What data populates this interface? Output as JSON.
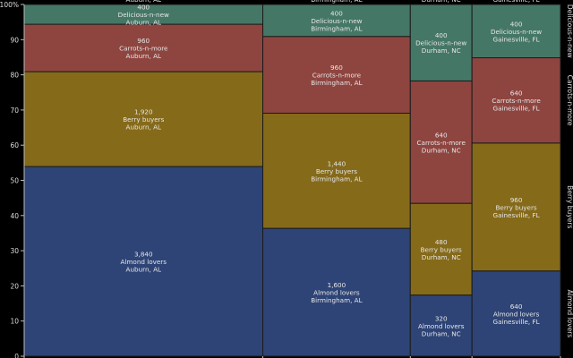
{
  "chart_data": {
    "type": "mosaic",
    "title": "",
    "xlabel": "",
    "ylabel": "",
    "ylim": [
      0,
      100
    ],
    "y_ticks": [
      "0",
      "10",
      "20",
      "30",
      "40",
      "50",
      "60",
      "70",
      "80",
      "90",
      "100%"
    ],
    "grid": false,
    "legend": "right-side rotated labels",
    "categories": [
      "Auburn, AL",
      "Birmingham, AL",
      "Durham, NC",
      "Gainesville, FL"
    ],
    "series": [
      {
        "name": "Almond lovers",
        "color": "#2e4476",
        "values": [
          3840,
          1600,
          320,
          640
        ]
      },
      {
        "name": "Berry buyers",
        "color": "#856a1a",
        "values": [
          1920,
          1440,
          480,
          960
        ]
      },
      {
        "name": "Carrots-n-more",
        "color": "#8e4540",
        "values": [
          960,
          960,
          640,
          640
        ]
      },
      {
        "name": "Delicious-n-new",
        "color": "#457766",
        "values": [
          400,
          400,
          400,
          400
        ]
      }
    ],
    "value_labels": {
      "Almond lovers": [
        "3,840",
        "1,600",
        "320",
        "640"
      ],
      "Berry buyers": [
        "1,920",
        "1,440",
        "480",
        "960"
      ],
      "Carrots-n-more": [
        "960",
        "960",
        "640",
        "640"
      ],
      "Delicious-n-new": [
        "400",
        "400",
        "400",
        "400"
      ]
    }
  }
}
